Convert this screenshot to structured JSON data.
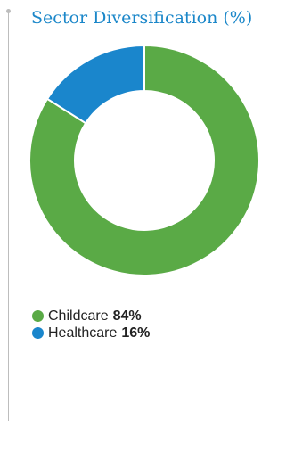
{
  "title": "Sector Diversification (%)",
  "colors": {
    "accent": "#1b87c9",
    "childcare": "#5aaa46",
    "healthcare": "#1a86cc"
  },
  "legend": [
    {
      "label": "Childcare",
      "value": "84%",
      "color": "#5aaa46"
    },
    {
      "label": "Healthcare",
      "value": "16%",
      "color": "#1a86cc"
    }
  ],
  "chart_data": {
    "type": "pie",
    "title": "Sector Diversification (%)",
    "donut": true,
    "categories": [
      "Childcare",
      "Healthcare"
    ],
    "values": [
      84,
      16
    ],
    "colors": [
      "#5aaa46",
      "#1a86cc"
    ],
    "legend_position": "bottom-left"
  }
}
